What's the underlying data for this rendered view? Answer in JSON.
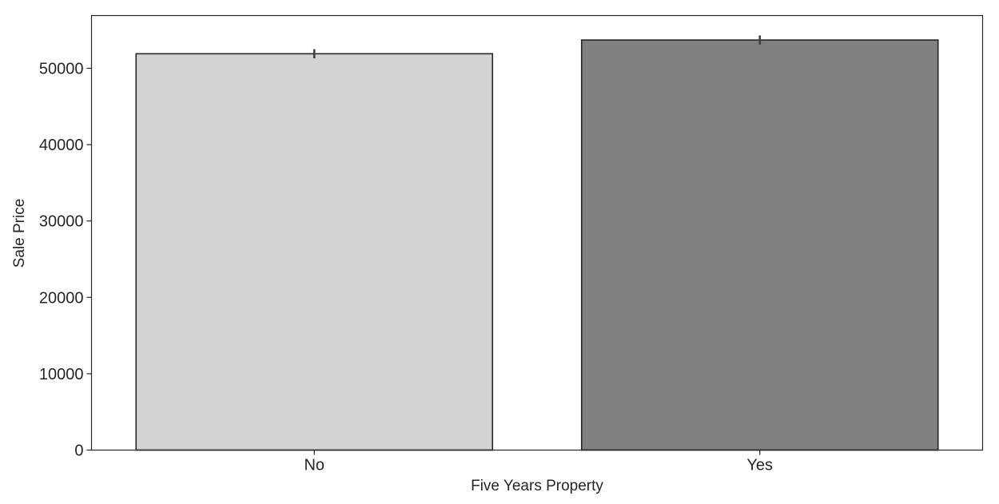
{
  "chart_data": {
    "type": "bar",
    "title": "",
    "xlabel": "Five Years Property",
    "ylabel": "Sale Price",
    "categories": [
      "No",
      "Yes"
    ],
    "values": [
      51900,
      53700
    ],
    "error_bars": [
      {
        "low": 51300,
        "high": 52500
      },
      {
        "low": 53100,
        "high": 54300
      }
    ],
    "bar_colors": [
      "#d3d3d3",
      "#808080"
    ],
    "edge_color": "#262626",
    "ylim": [
      0,
      56900
    ],
    "yticks": [
      0,
      10000,
      20000,
      30000,
      40000,
      50000
    ],
    "ytick_labels": [
      "0",
      "10000",
      "20000",
      "30000",
      "40000",
      "50000"
    ],
    "grid": false,
    "legend": "none"
  }
}
